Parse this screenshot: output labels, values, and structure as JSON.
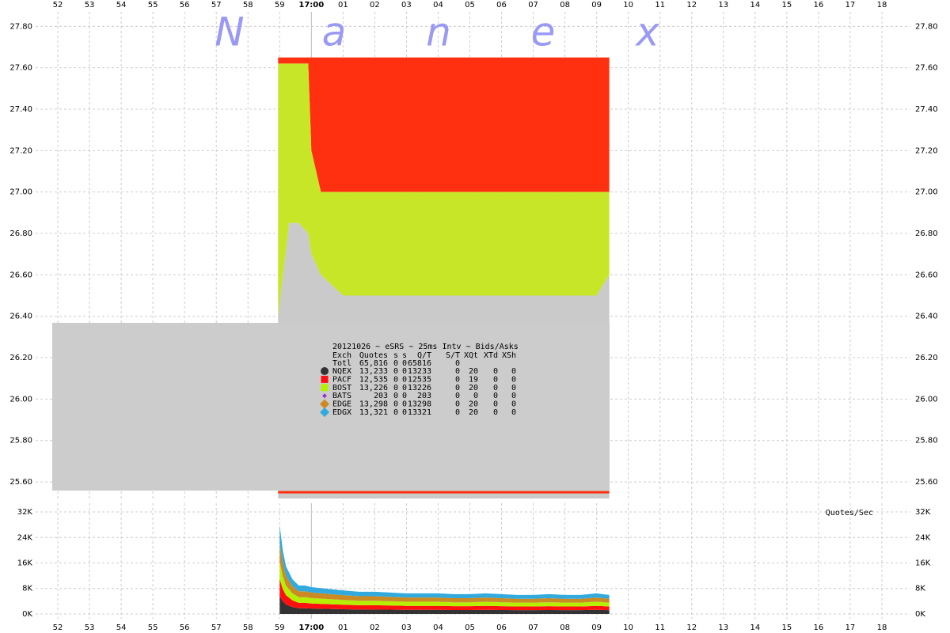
{
  "chart_data": [
    {
      "type": "price-bands",
      "watermark": [
        "N",
        "a",
        "n",
        "e",
        "x"
      ],
      "xlim": [
        51.3,
        78.9
      ],
      "xticks": [
        52,
        53,
        54,
        55,
        56,
        57,
        58,
        59,
        {
          "value": 60,
          "label": "17:00"
        },
        {
          "value": 61,
          "label": "01"
        },
        {
          "value": 62,
          "label": "02"
        },
        {
          "value": 63,
          "label": "03"
        },
        {
          "value": 64,
          "label": "04"
        },
        {
          "value": 65,
          "label": "05"
        },
        {
          "value": 66,
          "label": "06"
        },
        {
          "value": 67,
          "label": "07"
        },
        {
          "value": 68,
          "label": "08"
        },
        {
          "value": 69,
          "label": "09"
        },
        {
          "value": 70,
          "label": "10"
        },
        {
          "value": 71,
          "label": "11"
        },
        {
          "value": 72,
          "label": "12"
        },
        {
          "value": 73,
          "label": "13"
        },
        {
          "value": 74,
          "label": "14"
        },
        {
          "value": 75,
          "label": "15"
        },
        {
          "value": 76,
          "label": "16"
        },
        {
          "value": 77,
          "label": "17"
        },
        {
          "value": 78,
          "label": "18"
        }
      ],
      "session_line": 60,
      "ylim": [
        25.52,
        27.87
      ],
      "yticks": [
        {
          "value": 25.6,
          "label": "25.60"
        },
        {
          "value": 25.8,
          "label": "25.80"
        },
        {
          "value": 26,
          "label": "26.00"
        },
        {
          "value": 26.2,
          "label": "26.20"
        },
        {
          "value": 26.4,
          "label": "26.40"
        },
        {
          "value": 26.6,
          "label": "26.60"
        },
        {
          "value": 26.8,
          "label": "26.80"
        },
        {
          "value": 27,
          "label": "27.00"
        },
        {
          "value": 27.2,
          "label": "27.20"
        },
        {
          "value": 27.4,
          "label": "27.40"
        },
        {
          "value": 27.6,
          "label": "27.60"
        },
        {
          "value": 27.8,
          "label": "27.80"
        }
      ],
      "grid": true,
      "x": [
        58.95,
        59.3,
        59.6,
        59.9,
        60.0,
        60.3,
        61,
        62,
        63,
        64,
        65,
        66,
        67,
        68,
        69,
        69.4
      ],
      "series": [
        {
          "style": "area",
          "color": "#ff3010",
          "values": [
            27.65,
            27.65,
            27.65,
            27.65,
            27.65,
            27.65,
            27.65,
            27.65,
            27.65,
            27.65,
            27.65,
            27.65,
            27.65,
            27.65,
            27.65,
            27.65
          ]
        },
        {
          "style": "area",
          "color": "#c8e628",
          "values": [
            27.62,
            27.62,
            27.62,
            27.62,
            27.2,
            27.0,
            27.0,
            27.0,
            27.0,
            27.0,
            27.0,
            27.0,
            27.0,
            27.0,
            27.0,
            27.0
          ]
        },
        {
          "style": "area",
          "color": "#cacaca",
          "values": [
            26.4,
            26.85,
            26.85,
            26.8,
            26.7,
            26.6,
            26.5,
            26.5,
            26.5,
            26.5,
            26.5,
            26.5,
            26.5,
            26.5,
            26.5,
            26.6
          ]
        },
        {
          "style": "line",
          "color": "#ff3010",
          "values": [
            25.55,
            25.55,
            25.55,
            25.55,
            25.55,
            25.55,
            25.55,
            25.55,
            25.55,
            25.55,
            25.55,
            25.55,
            25.55,
            25.55,
            25.55,
            25.55
          ]
        }
      ],
      "stats": {
        "title": "20121026 ~ eSRS ~ 25ms Intv ~ Bids/Asks",
        "columns": [
          "Exch",
          "Quotes",
          "s",
          "s",
          "Q/T",
          "S/T",
          "XQt",
          "XTd",
          "XSh"
        ],
        "total": [
          "Totl",
          "65,816",
          0,
          0,
          65816,
          0
        ],
        "rows": [
          [
            "13,233",
            0,
            0,
            13233,
            0,
            20,
            0,
            0
          ],
          [
            "12,535",
            0,
            0,
            12535,
            0,
            19,
            0,
            0
          ],
          [
            "13,226",
            0,
            0,
            13226,
            0,
            20,
            0,
            0
          ],
          [
            203,
            0,
            0,
            203,
            0,
            0,
            0,
            0
          ],
          [
            "13,298",
            0,
            0,
            13298,
            0,
            20,
            0,
            0
          ],
          [
            "13,321",
            0,
            0,
            13321,
            0,
            20,
            0,
            0
          ]
        ]
      }
    },
    {
      "type": "stacked-area",
      "y_label": "Quotes/Sec",
      "xlim": [
        51.3,
        78.9
      ],
      "ylim": [
        -1490,
        34730
      ],
      "yticks": [
        {
          "value": 0,
          "label": "0K"
        },
        {
          "value": 8000,
          "label": "8K"
        },
        {
          "value": 16000,
          "label": "16K"
        },
        {
          "value": 24000,
          "label": "24K"
        },
        {
          "value": 32000,
          "label": "32K"
        }
      ],
      "grid": true,
      "x": [
        59.0,
        59.1,
        59.2,
        59.4,
        59.6,
        59.8,
        60.0,
        60.5,
        61.0,
        61.5,
        62.0,
        62.5,
        63.0,
        63.5,
        64.0,
        64.5,
        65.0,
        65.5,
        66.0,
        66.5,
        67.0,
        67.5,
        68.0,
        68.5,
        69.0,
        69.4
      ],
      "series": [
        {
          "name": "NQEX",
          "color": "#333333",
          "marker": "circle",
          "values": [
            5600,
            4000,
            3000,
            2200,
            1800,
            1800,
            1700,
            1600,
            1500,
            1400,
            1400,
            1350,
            1300,
            1300,
            1300,
            1250,
            1250,
            1300,
            1250,
            1200,
            1200,
            1250,
            1200,
            1200,
            1300,
            1200
          ]
        },
        {
          "name": "PACF",
          "color": "#ff1010",
          "marker": "square",
          "values": [
            5300,
            3800,
            2900,
            2100,
            1700,
            1700,
            1600,
            1500,
            1400,
            1350,
            1350,
            1300,
            1250,
            1250,
            1250,
            1200,
            1200,
            1250,
            1200,
            1150,
            1150,
            1200,
            1150,
            1150,
            1250,
            1150
          ]
        },
        {
          "name": "BOST",
          "color": "#b4f000",
          "marker": "square",
          "values": [
            5600,
            4000,
            3000,
            2200,
            1800,
            1800,
            1700,
            1600,
            1500,
            1400,
            1400,
            1350,
            1300,
            1300,
            1300,
            1250,
            1250,
            1300,
            1250,
            1200,
            1200,
            1250,
            1200,
            1200,
            1300,
            1200
          ]
        },
        {
          "name": "BATS",
          "color": "#9933cc",
          "marker": "small-diamond",
          "values": [
            100,
            80,
            60,
            40,
            30,
            30,
            25,
            20,
            20,
            20,
            20,
            20,
            20,
            20,
            20,
            20,
            20,
            20,
            20,
            20,
            20,
            20,
            20,
            20,
            20,
            20
          ]
        },
        {
          "name": "EDGE",
          "color": "#cc8a22",
          "marker": "diamond",
          "values": [
            5600,
            4000,
            3000,
            2200,
            1800,
            1800,
            1700,
            1600,
            1500,
            1400,
            1400,
            1350,
            1300,
            1300,
            1300,
            1250,
            1250,
            1300,
            1250,
            1200,
            1200,
            1250,
            1200,
            1200,
            1300,
            1200
          ]
        },
        {
          "name": "EDGX",
          "color": "#33aadd",
          "marker": "diamond",
          "values": [
            5600,
            4000,
            3000,
            2200,
            1800,
            1800,
            1700,
            1600,
            1500,
            1400,
            1400,
            1350,
            1300,
            1300,
            1300,
            1250,
            1250,
            1300,
            1250,
            1200,
            1200,
            1250,
            1200,
            1200,
            1300,
            1200
          ]
        }
      ]
    }
  ]
}
